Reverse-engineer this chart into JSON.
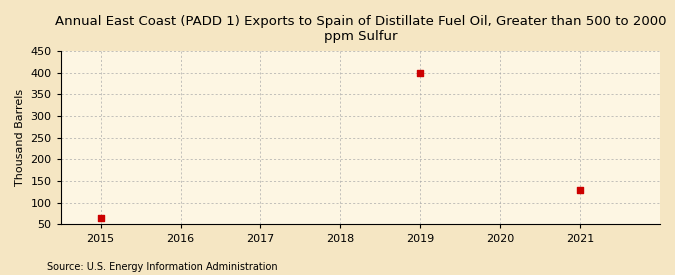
{
  "title": "Annual East Coast (PADD 1) Exports to Spain of Distillate Fuel Oil, Greater than 500 to 2000\nppm Sulfur",
  "ylabel": "Thousand Barrels",
  "source": "Source: U.S. Energy Information Administration",
  "x_values": [
    2015,
    2019,
    2021
  ],
  "y_values": [
    65,
    400,
    130
  ],
  "marker_color": "#cc0000",
  "marker": "s",
  "marker_size": 4,
  "ylim": [
    50,
    450
  ],
  "xlim": [
    2014.5,
    2022.0
  ],
  "yticks": [
    50,
    100,
    150,
    200,
    250,
    300,
    350,
    400,
    450
  ],
  "xticks": [
    2015,
    2016,
    2017,
    2018,
    2019,
    2020,
    2021
  ],
  "figure_bg_color": "#f5e6c3",
  "axes_bg_color": "#fdf6e3",
  "grid_color": "#aaaaaa",
  "title_fontsize": 9.5,
  "axis_label_fontsize": 8,
  "tick_fontsize": 8,
  "source_fontsize": 7
}
